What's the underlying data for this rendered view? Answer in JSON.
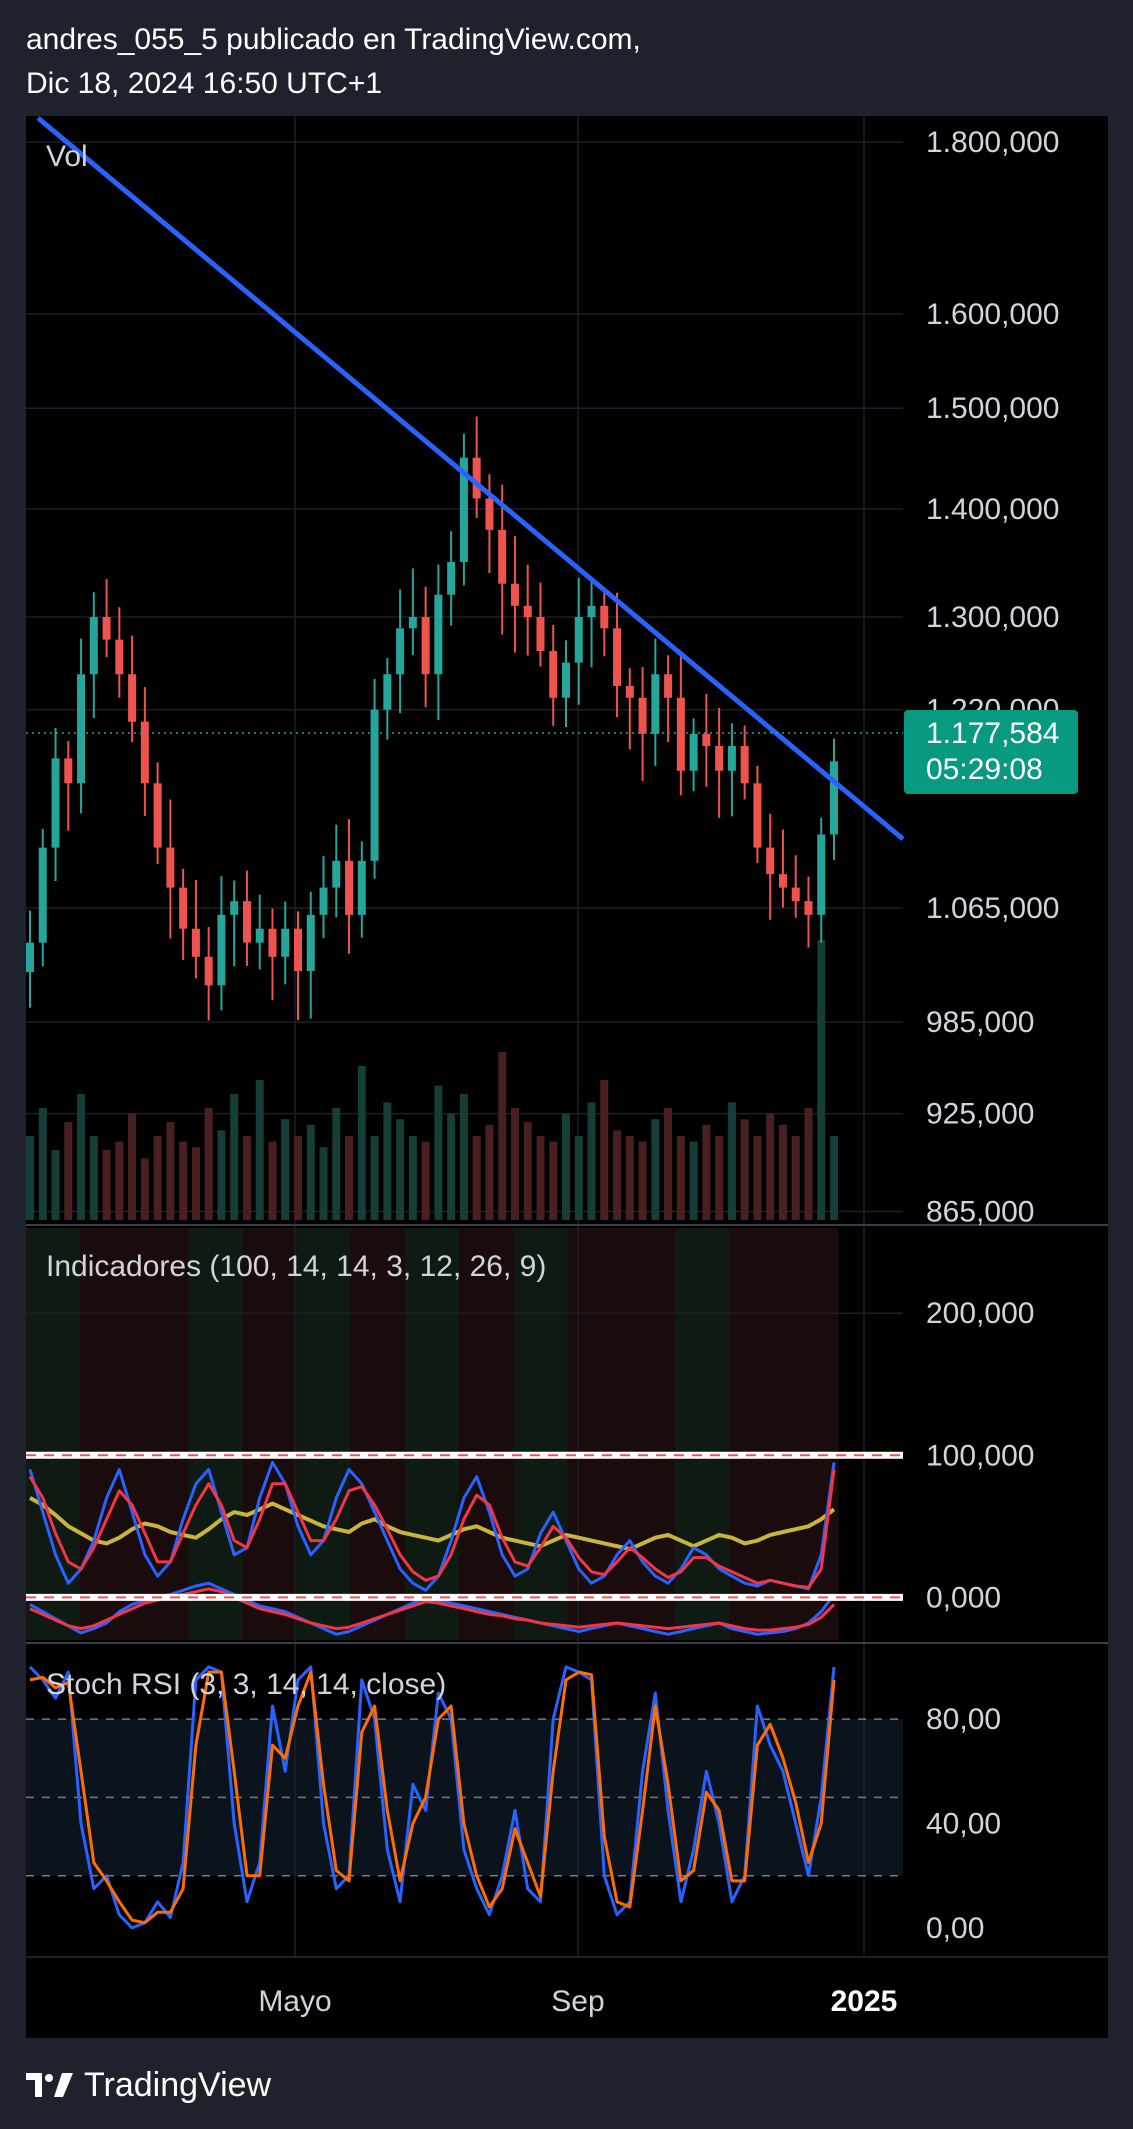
{
  "header": {
    "line1": "andres_055_5 publicado en TradingView.com,",
    "line2": "Dic 18, 2024 16:50 UTC+1"
  },
  "footer": {
    "brand": "TradingView"
  },
  "colors": {
    "background": "#000000",
    "frame": "#1e222d",
    "up": "#26a69a",
    "down": "#ef5350",
    "trendline": "#2962ff",
    "price_badge": "#089981",
    "stoch_k": "#2962ff",
    "stoch_d": "#ff6d00",
    "ind_yellow": "#c9b43c",
    "ind_blue": "#2962ff",
    "ind_red": "#f23645"
  },
  "chart_data": [
    {
      "type": "candlestick",
      "title": "Vol",
      "x_axis_labels": [
        "Mayo",
        "Sep",
        "2025"
      ],
      "y_ticks": [
        1800000,
        1600000,
        1500000,
        1400000,
        1300000,
        1220000,
        1065000,
        985000,
        925000,
        865000
      ],
      "y_tick_labels": [
        "1.800,000",
        "1.600,000",
        "1.500,000",
        "1.400,000",
        "1.300,000",
        "1.220,000",
        "1.065,000",
        "985,000",
        "925,000",
        "865,000"
      ],
      "ylim": [
        860000,
        1830000
      ],
      "scale": "log",
      "last_price": "1.177,584",
      "countdown": "05:29:08",
      "approx_closes": [
        1040000,
        1110000,
        1180000,
        1160000,
        1250000,
        1300000,
        1280000,
        1250000,
        1210000,
        1160000,
        1110000,
        1080000,
        1050000,
        1030000,
        1010000,
        1060000,
        1070000,
        1040000,
        1050000,
        1030000,
        1050000,
        1020000,
        1060000,
        1080000,
        1100000,
        1060000,
        1100000,
        1220000,
        1250000,
        1290000,
        1300000,
        1250000,
        1320000,
        1350000,
        1450000,
        1410000,
        1380000,
        1330000,
        1310000,
        1300000,
        1270000,
        1230000,
        1260000,
        1300000,
        1310000,
        1290000,
        1240000,
        1230000,
        1200000,
        1250000,
        1230000,
        1170000,
        1200000,
        1190000,
        1170000,
        1190000,
        1160000,
        1110000,
        1090000,
        1080000,
        1070000,
        1060000,
        1120000,
        1177584
      ],
      "volume_ylim": [
        0,
        100
      ],
      "approx_volumes": [
        30,
        40,
        25,
        35,
        45,
        30,
        25,
        28,
        38,
        22,
        30,
        35,
        28,
        26,
        40,
        32,
        45,
        30,
        50,
        28,
        36,
        30,
        34,
        26,
        40,
        30,
        55,
        30,
        42,
        36,
        30,
        28,
        48,
        38,
        45,
        30,
        34,
        60,
        40,
        35,
        30,
        28,
        38,
        30,
        42,
        50,
        32,
        30,
        28,
        36,
        40,
        30,
        28,
        34,
        30,
        42,
        36,
        30,
        38,
        34,
        30,
        40,
        100,
        30
      ]
    },
    {
      "type": "line",
      "title": "Indicadores (100, 14, 14, 3, 12, 26, 9)",
      "y_ticks": [
        200,
        100,
        0
      ],
      "y_tick_labels": [
        "200,000",
        "100,000",
        "0,000"
      ],
      "ylim": [
        -30,
        260
      ],
      "hlines": [
        100,
        0
      ],
      "series": [
        {
          "name": "yellow",
          "values": [
            70,
            65,
            58,
            50,
            45,
            40,
            38,
            42,
            48,
            52,
            50,
            46,
            44,
            42,
            48,
            55,
            60,
            58,
            62,
            66,
            62,
            58,
            54,
            50,
            48,
            46,
            52,
            55,
            50,
            46,
            44,
            42,
            40,
            44,
            48,
            50,
            46,
            42,
            40,
            38,
            36,
            40,
            44,
            42,
            40,
            38,
            36,
            34,
            38,
            42,
            44,
            40,
            36,
            40,
            44,
            42,
            38,
            40,
            44,
            46,
            48,
            50,
            55,
            62
          ]
        },
        {
          "name": "blue",
          "values": [
            90,
            60,
            30,
            10,
            20,
            40,
            70,
            90,
            60,
            30,
            15,
            25,
            55,
            80,
            90,
            60,
            30,
            35,
            70,
            95,
            80,
            50,
            30,
            40,
            70,
            90,
            80,
            60,
            40,
            20,
            10,
            5,
            15,
            40,
            70,
            85,
            60,
            30,
            15,
            20,
            45,
            60,
            40,
            20,
            10,
            15,
            30,
            40,
            25,
            15,
            10,
            20,
            35,
            30,
            20,
            15,
            10,
            8,
            12,
            10,
            8,
            6,
            30,
            95
          ]
        },
        {
          "name": "red",
          "values": [
            85,
            70,
            45,
            25,
            20,
            35,
            55,
            75,
            65,
            45,
            25,
            25,
            45,
            65,
            80,
            65,
            40,
            35,
            55,
            80,
            80,
            60,
            40,
            40,
            55,
            75,
            78,
            65,
            48,
            30,
            18,
            12,
            15,
            30,
            55,
            72,
            65,
            42,
            25,
            22,
            35,
            50,
            42,
            28,
            18,
            16,
            25,
            35,
            28,
            20,
            14,
            18,
            28,
            28,
            22,
            18,
            14,
            10,
            12,
            10,
            8,
            7,
            20,
            90
          ]
        },
        {
          "name": "lower_blue",
          "values": [
            -5,
            -10,
            -15,
            -20,
            -25,
            -22,
            -18,
            -10,
            -5,
            -2,
            0,
            2,
            5,
            8,
            10,
            6,
            2,
            -2,
            -6,
            -8,
            -10,
            -14,
            -18,
            -22,
            -26,
            -24,
            -20,
            -16,
            -12,
            -8,
            -4,
            0,
            -2,
            -4,
            -6,
            -8,
            -10,
            -12,
            -14,
            -16,
            -18,
            -20,
            -22,
            -24,
            -22,
            -20,
            -18,
            -20,
            -22,
            -24,
            -26,
            -24,
            -22,
            -20,
            -18,
            -22,
            -24,
            -26,
            -25,
            -24,
            -22,
            -18,
            -10,
            2
          ]
        },
        {
          "name": "lower_red",
          "values": [
            -8,
            -12,
            -16,
            -20,
            -22,
            -20,
            -16,
            -12,
            -8,
            -4,
            -2,
            0,
            2,
            4,
            6,
            4,
            0,
            -4,
            -8,
            -10,
            -12,
            -15,
            -18,
            -20,
            -22,
            -21,
            -18,
            -15,
            -12,
            -9,
            -6,
            -3,
            -4,
            -6,
            -8,
            -10,
            -12,
            -13,
            -15,
            -16,
            -18,
            -19,
            -20,
            -21,
            -20,
            -19,
            -18,
            -19,
            -20,
            -21,
            -22,
            -21,
            -20,
            -19,
            -18,
            -20,
            -22,
            -23,
            -23,
            -22,
            -21,
            -19,
            -14,
            -5
          ]
        }
      ]
    },
    {
      "type": "line",
      "title": "Stoch RSI (3, 3, 14, 14, close)",
      "y_ticks": [
        80,
        40,
        0
      ],
      "y_tick_labels": [
        "80,00",
        "40,00",
        "0,00"
      ],
      "ylim": [
        -10,
        108
      ],
      "bands": [
        80,
        50,
        20
      ],
      "series": [
        {
          "name": "K",
          "values": [
            100,
            95,
            88,
            98,
            40,
            15,
            20,
            5,
            0,
            2,
            10,
            4,
            25,
            95,
            100,
            98,
            40,
            10,
            25,
            85,
            60,
            95,
            100,
            40,
            15,
            20,
            95,
            80,
            30,
            10,
            55,
            45,
            90,
            80,
            30,
            15,
            5,
            20,
            45,
            15,
            10,
            80,
            100,
            98,
            95,
            20,
            5,
            10,
            60,
            90,
            45,
            10,
            30,
            60,
            40,
            10,
            20,
            85,
            70,
            60,
            40,
            20,
            50,
            100
          ]
        },
        {
          "name": "D",
          "values": [
            95,
            96,
            92,
            94,
            60,
            25,
            18,
            10,
            3,
            2,
            6,
            6,
            15,
            70,
            98,
            98,
            60,
            20,
            20,
            70,
            65,
            85,
            98,
            55,
            22,
            18,
            75,
            85,
            45,
            18,
            40,
            50,
            80,
            85,
            40,
            20,
            8,
            15,
            38,
            25,
            12,
            60,
            95,
            98,
            97,
            35,
            10,
            8,
            45,
            85,
            55,
            18,
            22,
            52,
            45,
            18,
            18,
            70,
            78,
            65,
            48,
            25,
            40,
            95
          ]
        }
      ]
    }
  ]
}
